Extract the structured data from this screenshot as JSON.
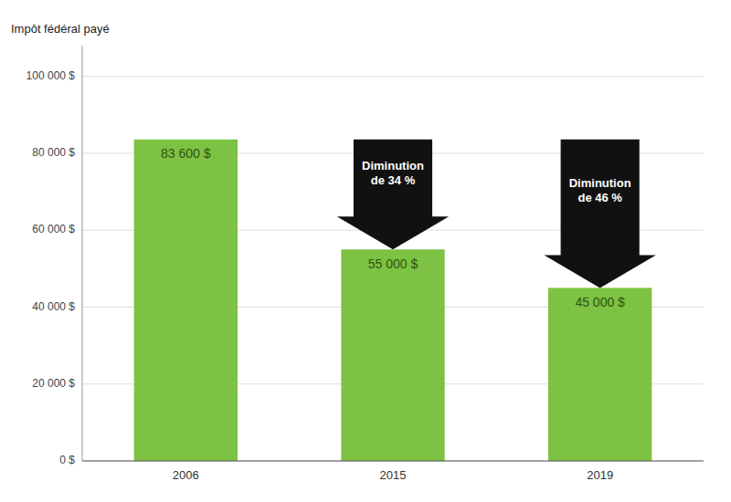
{
  "chart_data": {
    "type": "bar",
    "y_label": "Impôt fédéral payé",
    "categories": [
      "2006",
      "2015",
      "2019"
    ],
    "values": [
      83600,
      55000,
      45000
    ],
    "value_labels": [
      "83 600 $",
      "55 000 $",
      "45 000 $"
    ],
    "data_labels": true,
    "color": "#7DC243",
    "ylim": [
      0,
      108000
    ],
    "yticks": [
      {
        "value": 0,
        "label": "0 $"
      },
      {
        "value": 20000,
        "label": "20 000 $"
      },
      {
        "value": 40000,
        "label": "40 000 $"
      },
      {
        "value": 60000,
        "label": "60 000 $"
      },
      {
        "value": 80000,
        "label": "80 000 $"
      },
      {
        "value": 100000,
        "label": "100 000 $"
      }
    ],
    "grid": true,
    "annotations": [
      {
        "text": "Diminution\nde 34 %",
        "category": "2015",
        "from": 83600,
        "to": 55000,
        "color": "#111111"
      },
      {
        "text": "Diminution\nde 46 %",
        "category": "2019",
        "from": 83600,
        "to": 45000,
        "color": "#111111"
      }
    ]
  }
}
